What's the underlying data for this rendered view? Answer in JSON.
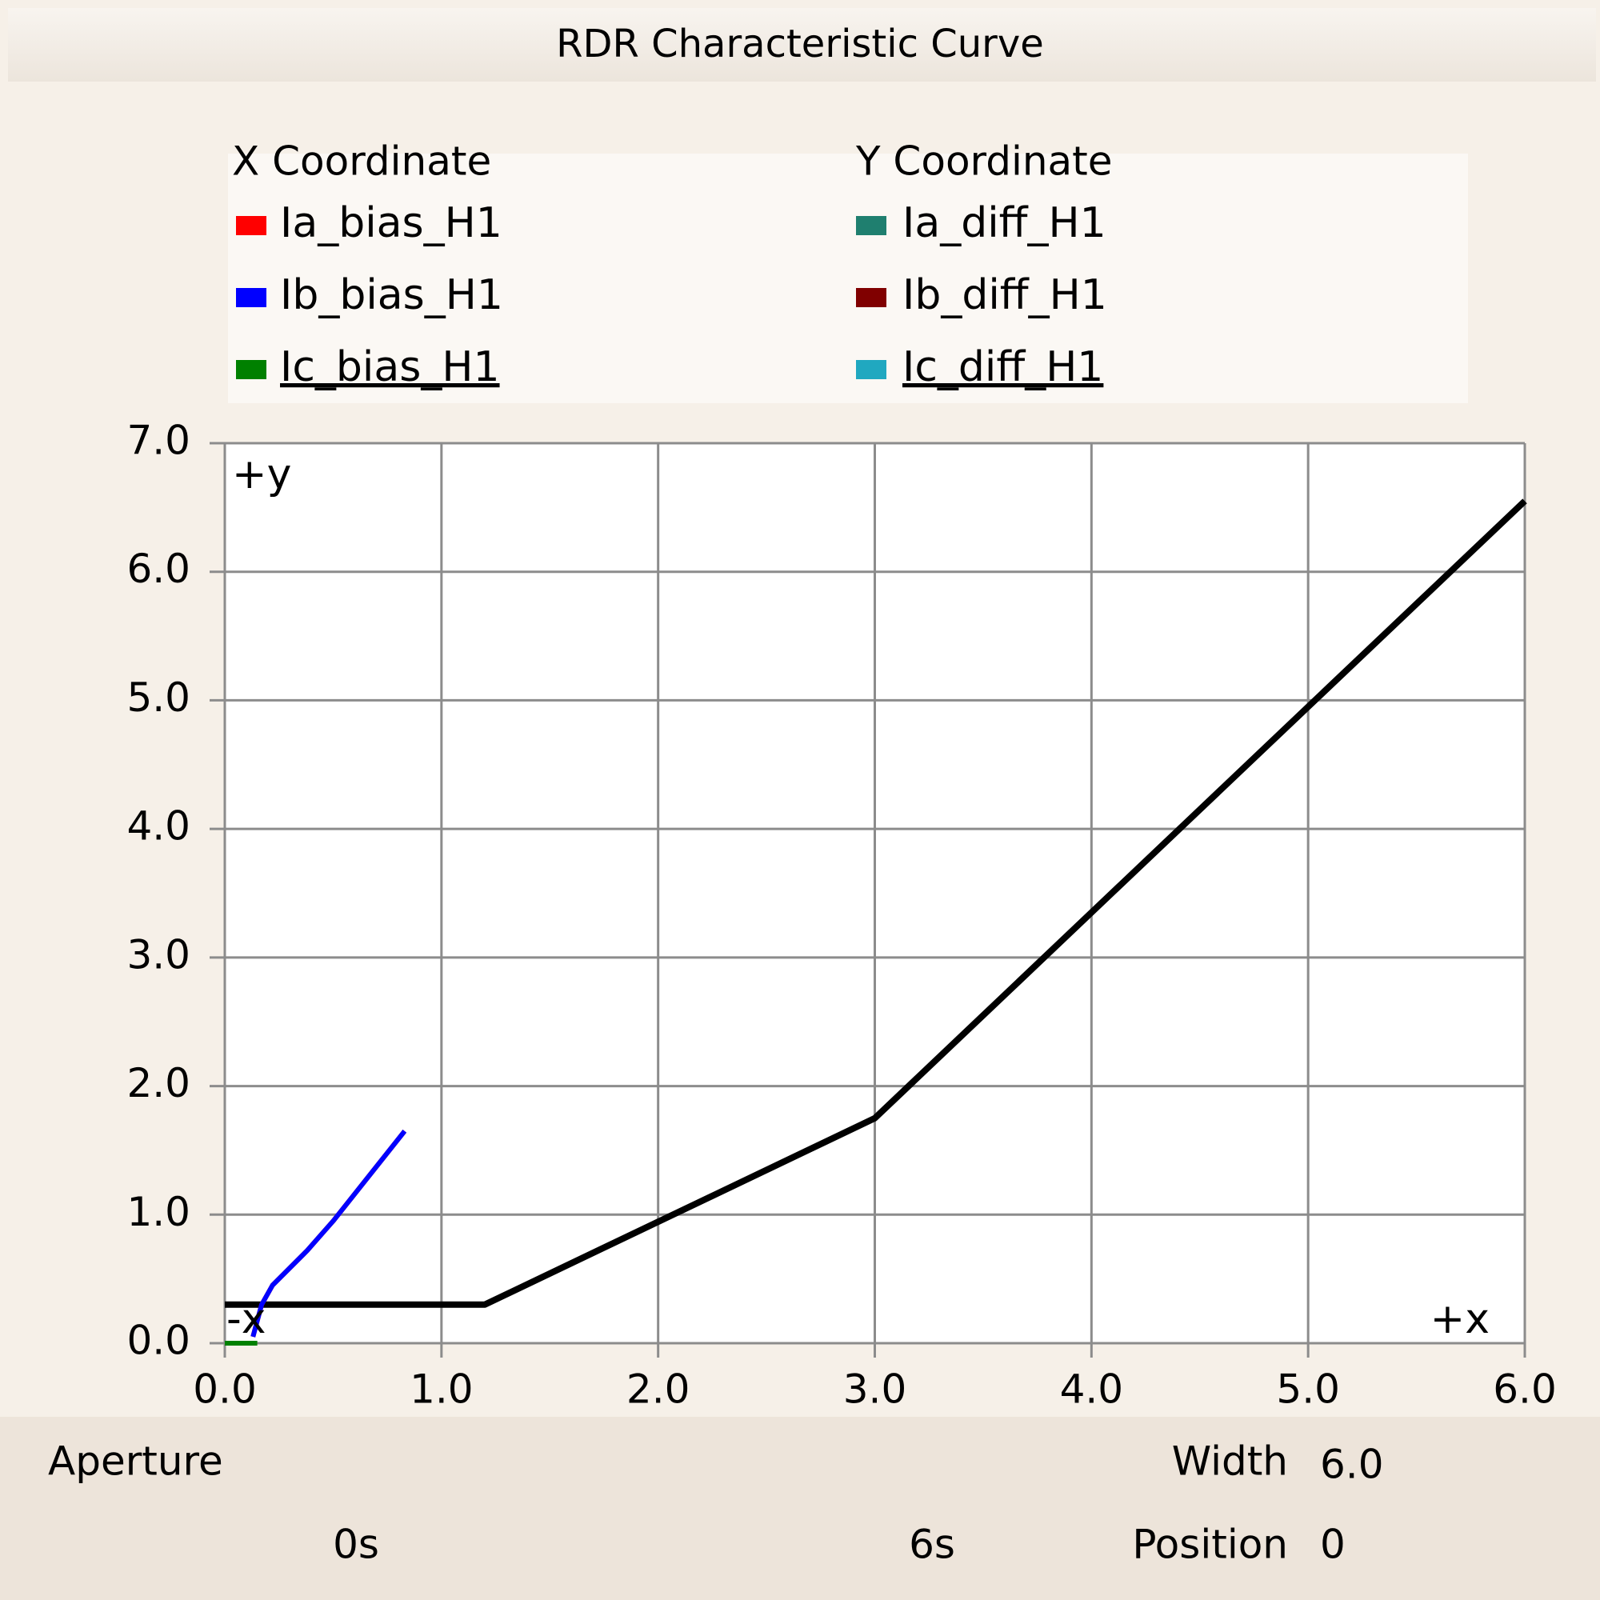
{
  "window": {
    "title": "RDR Characteristic Curve"
  },
  "legend": {
    "x_title": "X Coordinate",
    "y_title": "Y Coordinate",
    "x_entries": [
      {
        "name": "Ia_bias_H1",
        "color": "#ff0000"
      },
      {
        "name": "Ib_bias_H1",
        "color": "#0000ff"
      },
      {
        "name": "Ic_bias_H1",
        "color": "#008000"
      }
    ],
    "y_entries": [
      {
        "name": "Ia_diff_H1",
        "color": "#1f7f6f"
      },
      {
        "name": "Ib_diff_H1",
        "color": "#800000"
      },
      {
        "name": "Ic_diff_H1",
        "color": "#20a8c0"
      }
    ]
  },
  "chart_data": {
    "type": "line",
    "xlim": [
      0,
      6
    ],
    "ylim": [
      0,
      7
    ],
    "xticks": [
      {
        "value": 0,
        "label": "0.0"
      },
      {
        "value": 1,
        "label": "1.0"
      },
      {
        "value": 2,
        "label": "2.0"
      },
      {
        "value": 3,
        "label": "3.0"
      },
      {
        "value": 4,
        "label": "4.0"
      },
      {
        "value": 5,
        "label": "5.0"
      },
      {
        "value": 6,
        "label": "6.0"
      }
    ],
    "yticks": [
      {
        "value": 0,
        "label": "0.0"
      },
      {
        "value": 1,
        "label": "1.0"
      },
      {
        "value": 2,
        "label": "2.0"
      },
      {
        "value": 3,
        "label": "3.0"
      },
      {
        "value": 4,
        "label": "4.0"
      },
      {
        "value": 5,
        "label": "5.0"
      },
      {
        "value": 6,
        "label": "6.0"
      },
      {
        "value": 7,
        "label": "7.0"
      }
    ],
    "grid": true,
    "annotations": [
      "+y",
      "-x",
      "+x"
    ],
    "traces": [
      {
        "color": "#000000",
        "x": [
          0,
          1.2,
          3.0,
          6.0
        ],
        "y": [
          0.3,
          0.3,
          1.75,
          6.55
        ]
      },
      {
        "color": "#ff0000",
        "x": [
          0.13,
          0.17,
          0.22,
          0.38,
          0.5,
          0.83
        ],
        "y": [
          0.05,
          0.3,
          0.45,
          0.72,
          0.95,
          1.65
        ]
      },
      {
        "color": "#0000ff",
        "x": [
          0.13,
          0.17,
          0.22,
          0.38,
          0.5,
          0.83
        ],
        "y": [
          0.05,
          0.3,
          0.45,
          0.72,
          0.95,
          1.65
        ]
      },
      {
        "color": "#008000",
        "x": [
          0,
          0.15
        ],
        "y": [
          0,
          0
        ]
      }
    ]
  },
  "footer": {
    "aperture": "Aperture",
    "start": "0s",
    "end": "6s",
    "width_label": "Width",
    "width_value": "6.0",
    "position_label": "Position",
    "position_value": "0"
  }
}
